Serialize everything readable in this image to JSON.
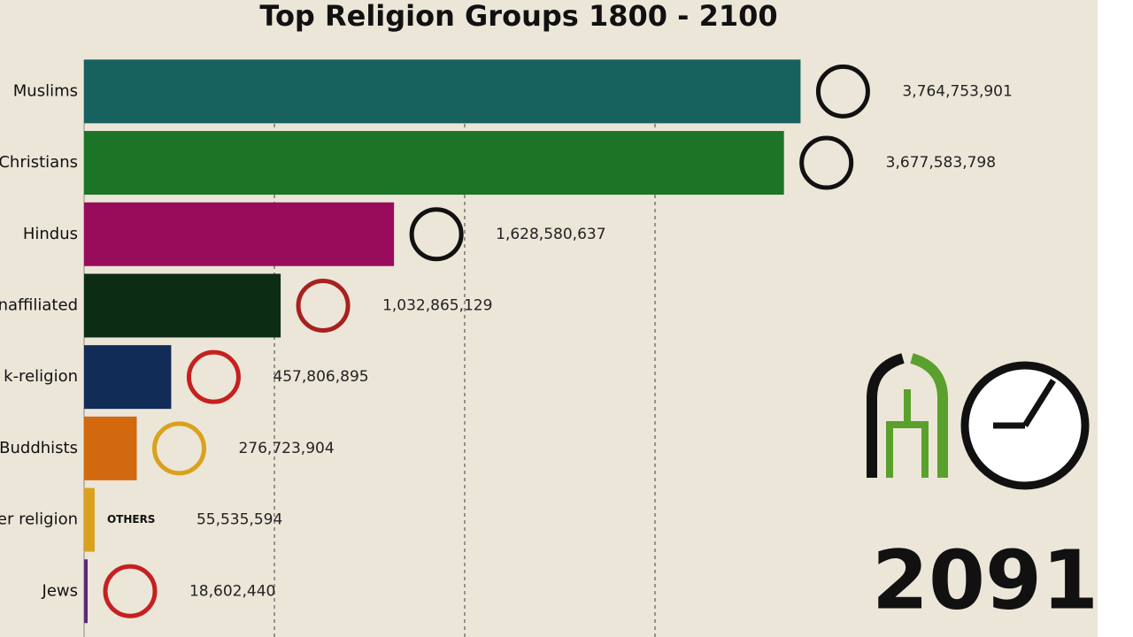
{
  "chart_data": {
    "type": "bar",
    "orientation": "horizontal",
    "title": "Top Religion Groups 1800 - 2100",
    "categories": [
      "Muslims",
      "Christians",
      "Hindus",
      "naffiliated",
      "k-religion",
      "Buddhists",
      "er religion",
      "Jews"
    ],
    "values": [
      3764753901,
      3677583798,
      1628580637,
      1032865129,
      457806895,
      276723904,
      55535594,
      18602440
    ],
    "value_labels": [
      "3,764,753,901",
      "3,677,583,798",
      "1,628,580,637",
      "1,032,865,129",
      "457,806,895",
      "276,723,904",
      "55,535,594",
      "18,602,440"
    ],
    "colors": [
      "#17615f",
      "#1c7426",
      "#980c5b",
      "#0d2c14",
      "#122c58",
      "#d2690f",
      "#d9a11e",
      "#5a2b78"
    ],
    "xlim": [
      0,
      5000000000
    ],
    "gridlines": [
      1000000000,
      2000000000,
      3000000000
    ],
    "grid": true,
    "icon_label": "OTHERS",
    "annotation": "2091"
  }
}
